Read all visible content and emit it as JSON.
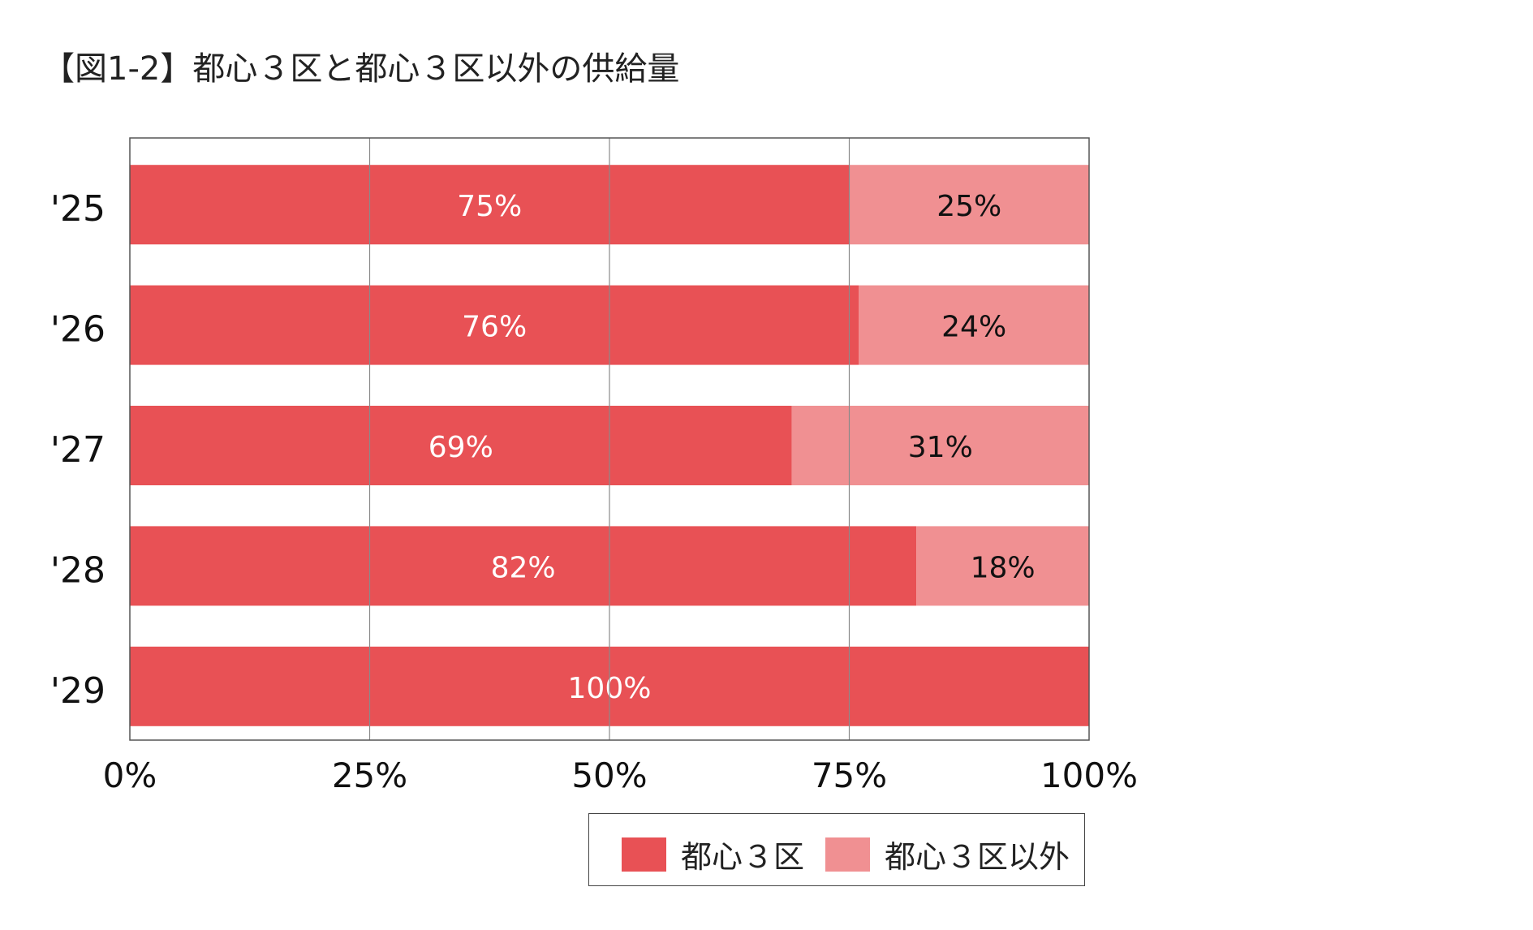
{
  "title": "【図1-2】都心３区と都心３区以外の供給量",
  "chart_data": {
    "type": "bar",
    "orientation": "horizontal",
    "stacked": true,
    "percent": true,
    "categories": [
      "'25",
      "'26",
      "'27",
      "'28",
      "'29"
    ],
    "series": [
      {
        "name": "都心３区",
        "values": [
          75,
          76,
          69,
          82,
          100
        ],
        "color": "#e85155",
        "labels": [
          "75%",
          "76%",
          "69%",
          "82%",
          "100%"
        ],
        "label_color": "#ffffff"
      },
      {
        "name": "都心３区以外",
        "values": [
          25,
          24,
          31,
          18,
          0
        ],
        "color": "#f09092",
        "labels": [
          "25%",
          "24%",
          "31%",
          "18%",
          ""
        ],
        "label_color": "#111111"
      }
    ],
    "x_ticks": [
      "0%",
      "25%",
      "50%",
      "75%",
      "100%"
    ],
    "xlim": [
      0,
      100
    ],
    "grid": true,
    "legend_position": "bottom-right"
  }
}
